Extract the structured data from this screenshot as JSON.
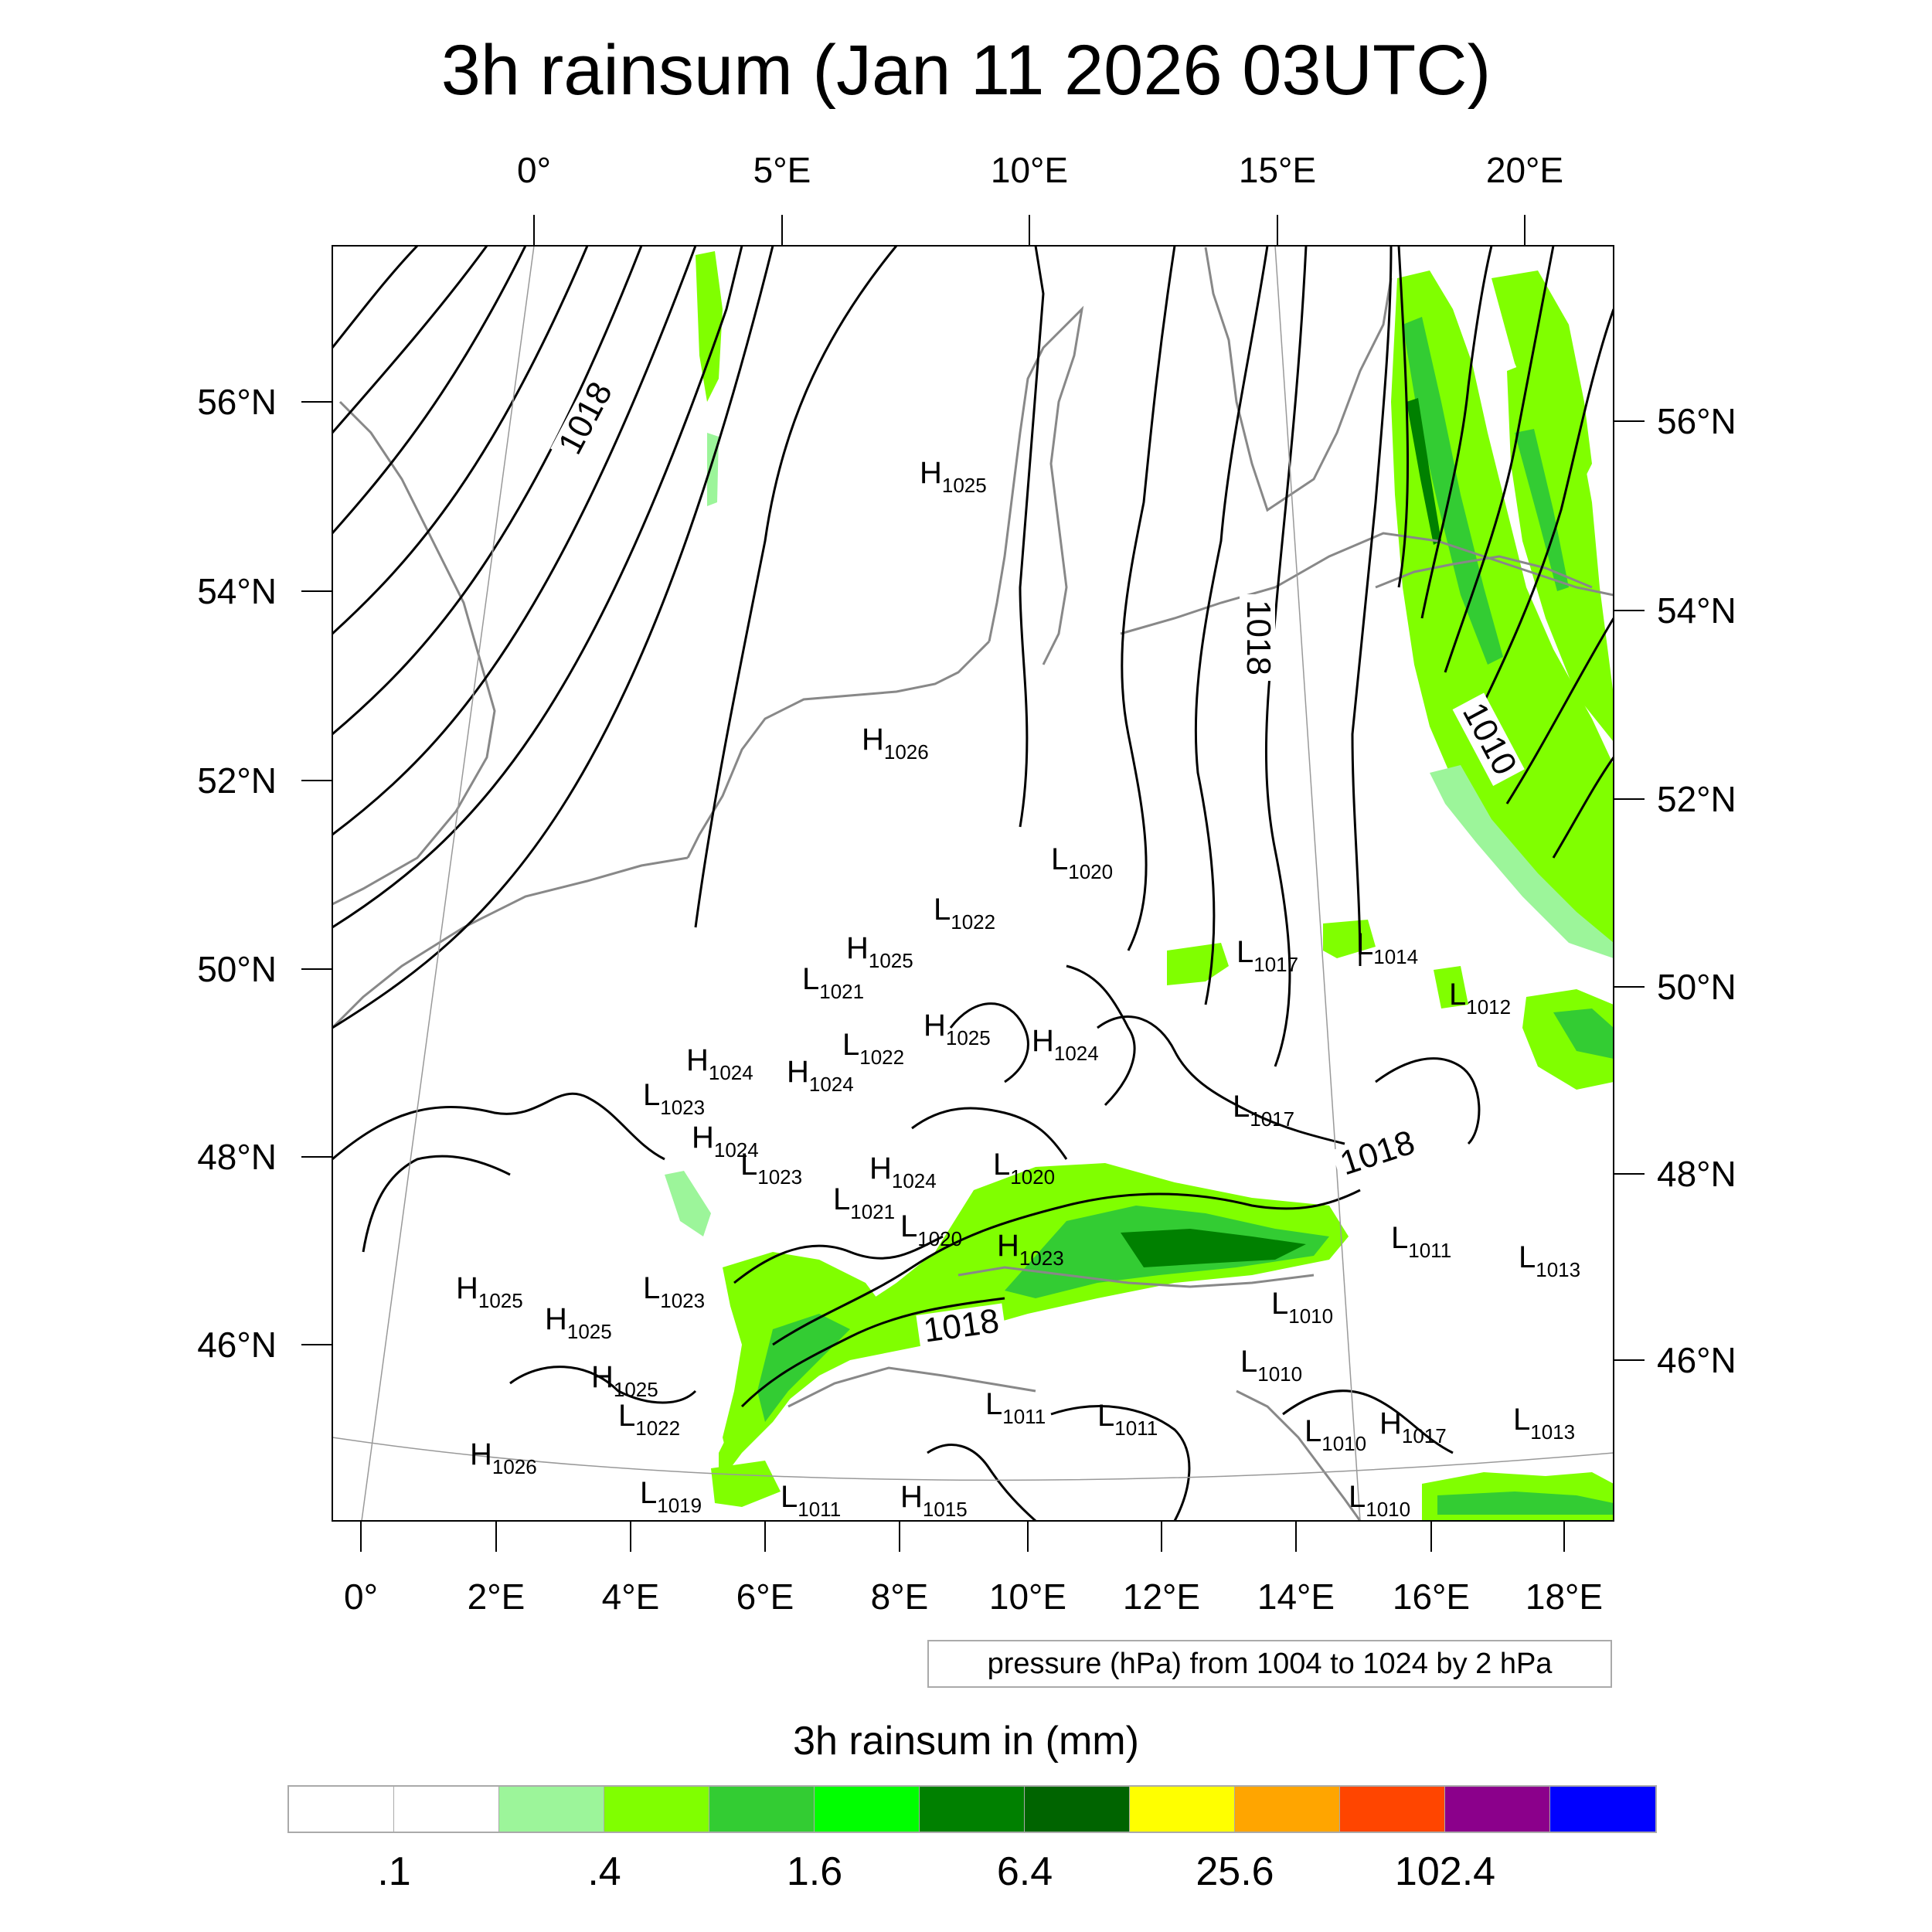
{
  "title": "3h rainsum (Jan 11 2026 03UTC)",
  "map": {
    "top_lon_ticks": [
      "0°",
      "5°E",
      "10°E",
      "15°E",
      "20°E"
    ],
    "bottom_lon_ticks": [
      "0°",
      "2°E",
      "4°E",
      "6°E",
      "8°E",
      "10°E",
      "12°E",
      "14°E",
      "16°E",
      "18°E"
    ],
    "left_lat_ticks": [
      "56°N",
      "54°N",
      "52°N",
      "50°N",
      "48°N",
      "46°N"
    ],
    "right_lat_ticks": [
      "56°N",
      "54°N",
      "52°N",
      "50°N",
      "48°N",
      "46°N"
    ],
    "contour_labels": [
      "1018",
      "1018",
      "1010",
      "1018",
      "1018"
    ],
    "pressure_centers": [
      {
        "type": "H",
        "value": "1025"
      },
      {
        "type": "H",
        "value": "1026"
      },
      {
        "type": "L",
        "value": "1020"
      },
      {
        "type": "L",
        "value": "1022"
      },
      {
        "type": "H",
        "value": "1025"
      },
      {
        "type": "L",
        "value": "1021"
      },
      {
        "type": "L",
        "value": "1017"
      },
      {
        "type": "L",
        "value": "1014"
      },
      {
        "type": "L",
        "value": "1012"
      },
      {
        "type": "H",
        "value": "1025"
      },
      {
        "type": "L",
        "value": "1022"
      },
      {
        "type": "H",
        "value": "1024"
      },
      {
        "type": "H",
        "value": "1024"
      },
      {
        "type": "H",
        "value": "1024"
      },
      {
        "type": "L",
        "value": "1023"
      },
      {
        "type": "H",
        "value": "1024"
      },
      {
        "type": "L",
        "value": "1023"
      },
      {
        "type": "L",
        "value": "1017"
      },
      {
        "type": "H",
        "value": "1024"
      },
      {
        "type": "L",
        "value": "1020"
      },
      {
        "type": "L",
        "value": "1021"
      },
      {
        "type": "L",
        "value": "1020"
      },
      {
        "type": "H",
        "value": "1023"
      },
      {
        "type": "L",
        "value": "1011"
      },
      {
        "type": "L",
        "value": "1013"
      },
      {
        "type": "H",
        "value": "1025"
      },
      {
        "type": "H",
        "value": "1025"
      },
      {
        "type": "L",
        "value": "1023"
      },
      {
        "type": "L",
        "value": "1010"
      },
      {
        "type": "H",
        "value": "1025"
      },
      {
        "type": "L",
        "value": "1010"
      },
      {
        "type": "L",
        "value": "1022"
      },
      {
        "type": "L",
        "value": "1011"
      },
      {
        "type": "L",
        "value": "1011"
      },
      {
        "type": "L",
        "value": "1010"
      },
      {
        "type": "H",
        "value": "1017"
      },
      {
        "type": "L",
        "value": "1013"
      },
      {
        "type": "H",
        "value": "1026"
      },
      {
        "type": "L",
        "value": "1019"
      },
      {
        "type": "L",
        "value": "1011"
      },
      {
        "type": "H",
        "value": "1015"
      },
      {
        "type": "L",
        "value": "1010"
      }
    ]
  },
  "pressure_info": "pressure (hPa) from 1004 to 1024 by 2 hPa",
  "legend": {
    "title": "3h rainsum in (mm)",
    "colors": [
      "#ffffff",
      "#ffffff",
      "#9cf59a",
      "#80ff00",
      "#33cc33",
      "#00ff00",
      "#008000",
      "#006400",
      "#ffff00",
      "#ffa500",
      "#ff4500",
      "#8b008b",
      "#0000ff"
    ],
    "labels": [
      ".1",
      ".4",
      "1.6",
      "6.4",
      "25.6",
      "102.4"
    ]
  },
  "rain_colors": {
    "light": "#9cf59a",
    "lime": "#80ff00",
    "medium": "#33cc33",
    "green": "#00ff00",
    "dark": "#008000",
    "darkest": "#006400"
  }
}
